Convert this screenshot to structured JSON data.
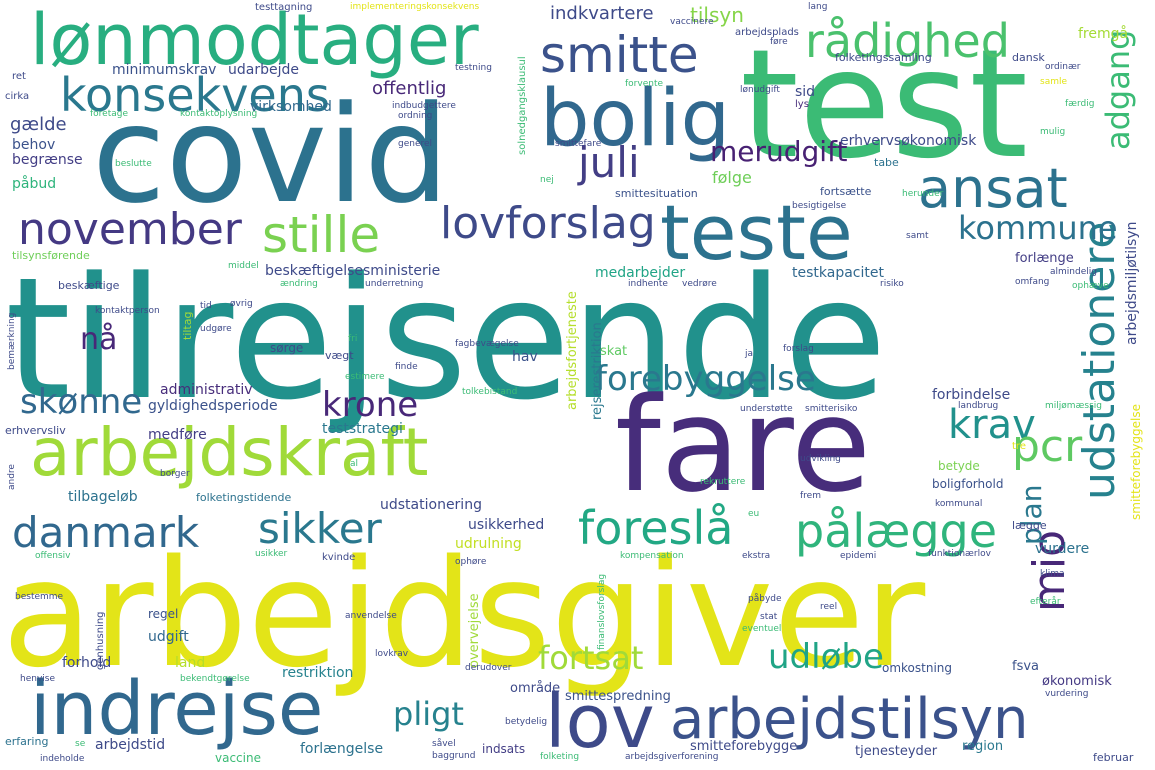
{
  "words": [
    {
      "text": "tilrejsende",
      "color": "#21918c"
    },
    {
      "text": "arbejdsgiver",
      "color": "#e3e418"
    },
    {
      "text": "covid",
      "color": "#2c728e"
    },
    {
      "text": "test",
      "color": "#3bbb75"
    },
    {
      "text": "fare",
      "color": "#472d7b"
    },
    {
      "text": "lønmodtager",
      "color": "#28ae80"
    },
    {
      "text": "arbejdskraft",
      "color": "#a0da39"
    },
    {
      "text": "bolig",
      "color": "#31688e"
    },
    {
      "text": "teste",
      "color": "#2c728e"
    },
    {
      "text": "indrejse",
      "color": "#31688e"
    },
    {
      "text": "lov",
      "color": "#3e4a89"
    },
    {
      "text": "arbejdstilsyn",
      "color": "#3b528b"
    },
    {
      "text": "smitte",
      "color": "#3b528b"
    },
    {
      "text": "konsekvens",
      "color": "#2a788e"
    },
    {
      "text": "rådighed",
      "color": "#4ac16d"
    },
    {
      "text": "ansat",
      "color": "#2c728e"
    },
    {
      "text": "udstationere",
      "color": "#26828e"
    },
    {
      "text": "november",
      "color": "#443983"
    },
    {
      "text": "stille",
      "color": "#7ad151"
    },
    {
      "text": "lovforslag",
      "color": "#3e4a89"
    },
    {
      "text": "danmark",
      "color": "#31688e"
    },
    {
      "text": "sikker",
      "color": "#2a788e"
    },
    {
      "text": "foreslå",
      "color": "#22a884"
    },
    {
      "text": "pålægge",
      "color": "#2fb47c"
    },
    {
      "text": "krav",
      "color": "#21918c"
    },
    {
      "text": "pcr",
      "color": "#5ec962"
    },
    {
      "text": "mio",
      "color": "#482878"
    },
    {
      "text": "juli",
      "color": "#433e85"
    },
    {
      "text": "merudgift",
      "color": "#482173"
    },
    {
      "text": "kommune",
      "color": "#2c728e"
    },
    {
      "text": "adgang",
      "color": "#3bbb75"
    },
    {
      "text": "forebyggelse",
      "color": "#2a788e"
    },
    {
      "text": "krone",
      "color": "#482878"
    },
    {
      "text": "skønne",
      "color": "#31688e"
    },
    {
      "text": "nå",
      "color": "#482878"
    },
    {
      "text": "fortsat",
      "color": "#a0da39"
    },
    {
      "text": "udløbe",
      "color": "#20a486"
    },
    {
      "text": "pligt",
      "color": "#26828e"
    },
    {
      "text": "plan",
      "color": "#2a788e"
    },
    {
      "text": "indkvartere",
      "color": "#3e4a89"
    },
    {
      "text": "tilsyn",
      "color": "#86d549"
    },
    {
      "text": "fremgå",
      "color": "#a5db36"
    },
    {
      "text": "minimumskrav",
      "color": "#3b528b"
    },
    {
      "text": "udarbejde",
      "color": "#3e4a89"
    },
    {
      "text": "offentlig",
      "color": "#482878"
    },
    {
      "text": "virksomhed",
      "color": "#31688e"
    },
    {
      "text": "gælde",
      "color": "#3e4a89"
    },
    {
      "text": "behov",
      "color": "#3b528b"
    },
    {
      "text": "begrænse",
      "color": "#433e85"
    },
    {
      "text": "påbud",
      "color": "#2fb47c"
    },
    {
      "text": "sid",
      "color": "#3e4a89"
    },
    {
      "text": "lys",
      "color": "#472d7b"
    },
    {
      "text": "erhvervsøkonomisk",
      "color": "#3e4a89"
    },
    {
      "text": "følge",
      "color": "#6ece58"
    },
    {
      "text": "fortsætte",
      "color": "#3b528b"
    },
    {
      "text": "smittesituation",
      "color": "#3b528b"
    },
    {
      "text": "tabe",
      "color": "#2c728e"
    },
    {
      "text": "arbejdsmiljøtilsyn",
      "color": "#3e4a89"
    },
    {
      "text": "folketingssamling",
      "color": "#3e4a89"
    },
    {
      "text": "dansk",
      "color": "#3e4a89"
    },
    {
      "text": "beskæftigelsesministerie",
      "color": "#3e4a89"
    },
    {
      "text": "medarbejder",
      "color": "#20a486"
    },
    {
      "text": "testkapacitet",
      "color": "#31688e"
    },
    {
      "text": "forlænge",
      "color": "#433e85"
    },
    {
      "text": "arbejdsfortjeneste",
      "color": "#b5de2b"
    },
    {
      "text": "rejserestriktion",
      "color": "#2a788e"
    },
    {
      "text": "hav",
      "color": "#3b528b"
    },
    {
      "text": "skat",
      "color": "#5ec962"
    },
    {
      "text": "administrativ",
      "color": "#472d7b"
    },
    {
      "text": "gyldighedsperiode",
      "color": "#3b528b"
    },
    {
      "text": "forbindelse",
      "color": "#3e4a89"
    },
    {
      "text": "medføre",
      "color": "#433e85"
    },
    {
      "text": "teststrategi",
      "color": "#2a788e"
    },
    {
      "text": "tilbageløb",
      "color": "#2c728e"
    },
    {
      "text": "folketingstidende",
      "color": "#2c728e"
    },
    {
      "text": "udstationering",
      "color": "#3e4a89"
    },
    {
      "text": "betyde",
      "color": "#7ad151"
    },
    {
      "text": "boligforhold",
      "color": "#3b528b"
    },
    {
      "text": "usikkerhed",
      "color": "#3e4a89"
    },
    {
      "text": "udrulning",
      "color": "#c2df23"
    },
    {
      "text": "vurdere",
      "color": "#2c728e"
    },
    {
      "text": "lægge",
      "color": "#3e4a89"
    },
    {
      "text": "udgift",
      "color": "#31688e"
    },
    {
      "text": "regel",
      "color": "#3b528b"
    },
    {
      "text": "forhold",
      "color": "#3e4a89"
    },
    {
      "text": "land",
      "color": "#b5de2b"
    },
    {
      "text": "restriktion",
      "color": "#26828e"
    },
    {
      "text": "fsva",
      "color": "#3b528b"
    },
    {
      "text": "økonomisk",
      "color": "#443983"
    },
    {
      "text": "omkostning",
      "color": "#3b528b"
    },
    {
      "text": "overvejelse",
      "color": "#a0da39"
    },
    {
      "text": "område",
      "color": "#3e4a89"
    },
    {
      "text": "smittespredning",
      "color": "#3b528b"
    },
    {
      "text": "smitteforebygge",
      "color": "#3e4a89"
    },
    {
      "text": "region",
      "color": "#2a788e"
    },
    {
      "text": "tjenesteyder",
      "color": "#3e4a89"
    },
    {
      "text": "februar",
      "color": "#3e4a89"
    },
    {
      "text": "forlængelse",
      "color": "#2c728e"
    },
    {
      "text": "arbejdstid",
      "color": "#3e4a89"
    },
    {
      "text": "vaccine",
      "color": "#3bbb75"
    },
    {
      "text": "indsats",
      "color": "#433e85"
    },
    {
      "text": "erfaring",
      "color": "#2c728e"
    },
    {
      "text": "sørge",
      "color": "#3e4a89"
    },
    {
      "text": "vægt",
      "color": "#3e4a89"
    },
    {
      "text": "tilsynsførende",
      "color": "#6ece58"
    },
    {
      "text": "beskæftige",
      "color": "#3e4a89"
    },
    {
      "text": "tiltag",
      "color": "#a0da39"
    },
    {
      "text": "erhvervsliv",
      "color": "#3e4a89"
    },
    {
      "text": "kvinde",
      "color": "#3e4a89"
    },
    {
      "text": "genhusning",
      "color": "#3e4a89"
    },
    {
      "text": "testtagning",
      "color": "#3e4a89"
    },
    {
      "text": "implementeringskonsekvens",
      "color": "#e3e418"
    },
    {
      "text": "vaccinere",
      "color": "#3e4a89"
    },
    {
      "text": "arbejdsplads",
      "color": "#3e4a89"
    },
    {
      "text": "testning",
      "color": "#3e4a89"
    },
    {
      "text": "indbudgettere",
      "color": "#3e4a89"
    },
    {
      "text": "ordning",
      "color": "#3e4a89"
    },
    {
      "text": "solnedgangsklausul",
      "color": "#3bbb75"
    },
    {
      "text": "kontaktoplysning",
      "color": "#3bbb75"
    },
    {
      "text": "foretage",
      "color": "#3bbb75"
    },
    {
      "text": "generel",
      "color": "#3e4a89"
    },
    {
      "text": "beslutte",
      "color": "#3bbb75"
    },
    {
      "text": "smittefare",
      "color": "#3e4a89"
    },
    {
      "text": "lang",
      "color": "#3e4a89"
    },
    {
      "text": "ordinær",
      "color": "#3e4a89"
    },
    {
      "text": "samle",
      "color": "#e3e418"
    },
    {
      "text": "færdig",
      "color": "#3bbb75"
    },
    {
      "text": "mulig",
      "color": "#3bbb75"
    },
    {
      "text": "forvente",
      "color": "#3bbb75"
    },
    {
      "text": "lønudgift",
      "color": "#3e4a89"
    },
    {
      "text": "ret",
      "color": "#3e4a89"
    },
    {
      "text": "cirka",
      "color": "#3e4a89"
    },
    {
      "text": "føre",
      "color": "#3e4a89"
    },
    {
      "text": "besigtigelse",
      "color": "#3e4a89"
    },
    {
      "text": "herunder",
      "color": "#3bbb75"
    },
    {
      "text": "samt",
      "color": "#3e4a89"
    },
    {
      "text": "almindelig",
      "color": "#3e4a89"
    },
    {
      "text": "omfang",
      "color": "#3e4a89"
    },
    {
      "text": "ophæve",
      "color": "#3bbb75"
    },
    {
      "text": "underretning",
      "color": "#3e4a89"
    },
    {
      "text": "indhente",
      "color": "#3e4a89"
    },
    {
      "text": "vedrøre",
      "color": "#3e4a89"
    },
    {
      "text": "risiko",
      "color": "#3e4a89"
    },
    {
      "text": "middel",
      "color": "#3bbb75"
    },
    {
      "text": "ændring",
      "color": "#3bbb75"
    },
    {
      "text": "øvrig",
      "color": "#3e4a89"
    },
    {
      "text": "kontaktperson",
      "color": "#3e4a89"
    },
    {
      "text": "tid",
      "color": "#3e4a89"
    },
    {
      "text": "udgøre",
      "color": "#3e4a89"
    },
    {
      "text": "fagbevægelse",
      "color": "#3e4a89"
    },
    {
      "text": "fri",
      "color": "#3bbb75"
    },
    {
      "text": "forslag",
      "color": "#3e4a89"
    },
    {
      "text": "ja",
      "color": "#3e4a89"
    },
    {
      "text": "finde",
      "color": "#3e4a89"
    },
    {
      "text": "estimere",
      "color": "#3bbb75"
    },
    {
      "text": "bemærkning",
      "color": "#3e4a89"
    },
    {
      "text": "tolkebistand",
      "color": "#3bbb75"
    },
    {
      "text": "understøtte",
      "color": "#3e4a89"
    },
    {
      "text": "smitterisiko",
      "color": "#3e4a89"
    },
    {
      "text": "landbrug",
      "color": "#3e4a89"
    },
    {
      "text": "miljømæssig",
      "color": "#3bbb75"
    },
    {
      "text": "smitteforebyggelse",
      "color": "#e3e418"
    },
    {
      "text": "tre",
      "color": "#e3e418"
    },
    {
      "text": "udvikling",
      "color": "#3e4a89"
    },
    {
      "text": "andre",
      "color": "#3e4a89"
    },
    {
      "text": "borger",
      "color": "#3e4a89"
    },
    {
      "text": "frem",
      "color": "#3e4a89"
    },
    {
      "text": "rekruttere",
      "color": "#3bbb75"
    },
    {
      "text": "kommunal",
      "color": "#3e4a89"
    },
    {
      "text": "eu",
      "color": "#3bbb75"
    },
    {
      "text": "al",
      "color": "#3bbb75"
    },
    {
      "text": "nej",
      "color": "#3bbb75"
    },
    {
      "text": "offensiv",
      "color": "#3bbb75"
    },
    {
      "text": "usikker",
      "color": "#3bbb75"
    },
    {
      "text": "ophøre",
      "color": "#3e4a89"
    },
    {
      "text": "kompensation",
      "color": "#3bbb75"
    },
    {
      "text": "ekstra",
      "color": "#3e4a89"
    },
    {
      "text": "epidemi",
      "color": "#3e4a89"
    },
    {
      "text": "funktionærlov",
      "color": "#3e4a89"
    },
    {
      "text": "klima",
      "color": "#3e4a89"
    },
    {
      "text": "bestemme",
      "color": "#3e4a89"
    },
    {
      "text": "påbyde",
      "color": "#3e4a89"
    },
    {
      "text": "stat",
      "color": "#3e4a89"
    },
    {
      "text": "reel",
      "color": "#3e4a89"
    },
    {
      "text": "eventuel",
      "color": "#3bbb75"
    },
    {
      "text": "efterår",
      "color": "#3bbb75"
    },
    {
      "text": "anvendelse",
      "color": "#3e4a89"
    },
    {
      "text": "finanslovsforslag",
      "color": "#3bbb75"
    },
    {
      "text": "lovkrav",
      "color": "#3e4a89"
    },
    {
      "text": "henvise",
      "color": "#3e4a89"
    },
    {
      "text": "bekendtgørelse",
      "color": "#3bbb75"
    },
    {
      "text": "derudover",
      "color": "#3e4a89"
    },
    {
      "text": "vurdering",
      "color": "#3e4a89"
    },
    {
      "text": "betydelig",
      "color": "#3e4a89"
    },
    {
      "text": "se",
      "color": "#3bbb75"
    },
    {
      "text": "såvel",
      "color": "#3e4a89"
    },
    {
      "text": "indeholde",
      "color": "#3e4a89"
    },
    {
      "text": "baggrund",
      "color": "#3e4a89"
    },
    {
      "text": "folketing",
      "color": "#3bbb75"
    },
    {
      "text": "arbejdsgiverforening",
      "color": "#3e4a89"
    }
  ]
}
